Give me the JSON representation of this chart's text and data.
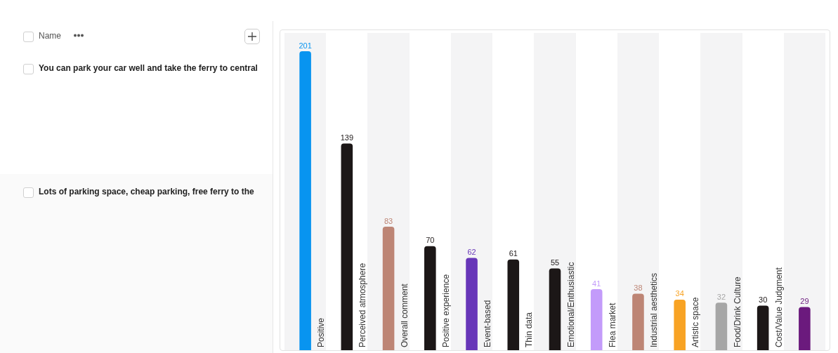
{
  "chart_data": {
    "type": "bar",
    "categories": [
      "Positive",
      "Perceived atmosphere",
      "Overall comment",
      "Positive experience",
      "Event-based",
      "Thin data",
      "Emotional/Enthusiastic",
      "Flea market",
      "Industrial aesthetics",
      "Artistic space",
      "Food/Drink Culture",
      "Cost/Value Judgment",
      null
    ],
    "values": [
      201,
      139,
      83,
      70,
      62,
      61,
      55,
      41,
      38,
      34,
      32,
      30,
      29
    ],
    "colors": [
      "#0894f0",
      "#1c1717",
      "#bd8575",
      "#1c1717",
      "#6736b8",
      "#1c1717",
      "#1c1717",
      "#c39bfa",
      "#bd8575",
      "#f8a324",
      "#a6a6a6",
      "#1c1717",
      "#6b1a7d"
    ],
    "data_labels": true,
    "annotations": [
      "Name",
      "You can park your car well and take the ferry to central",
      "Lots of parking space, cheap parking, free ferry to the"
    ]
  }
}
